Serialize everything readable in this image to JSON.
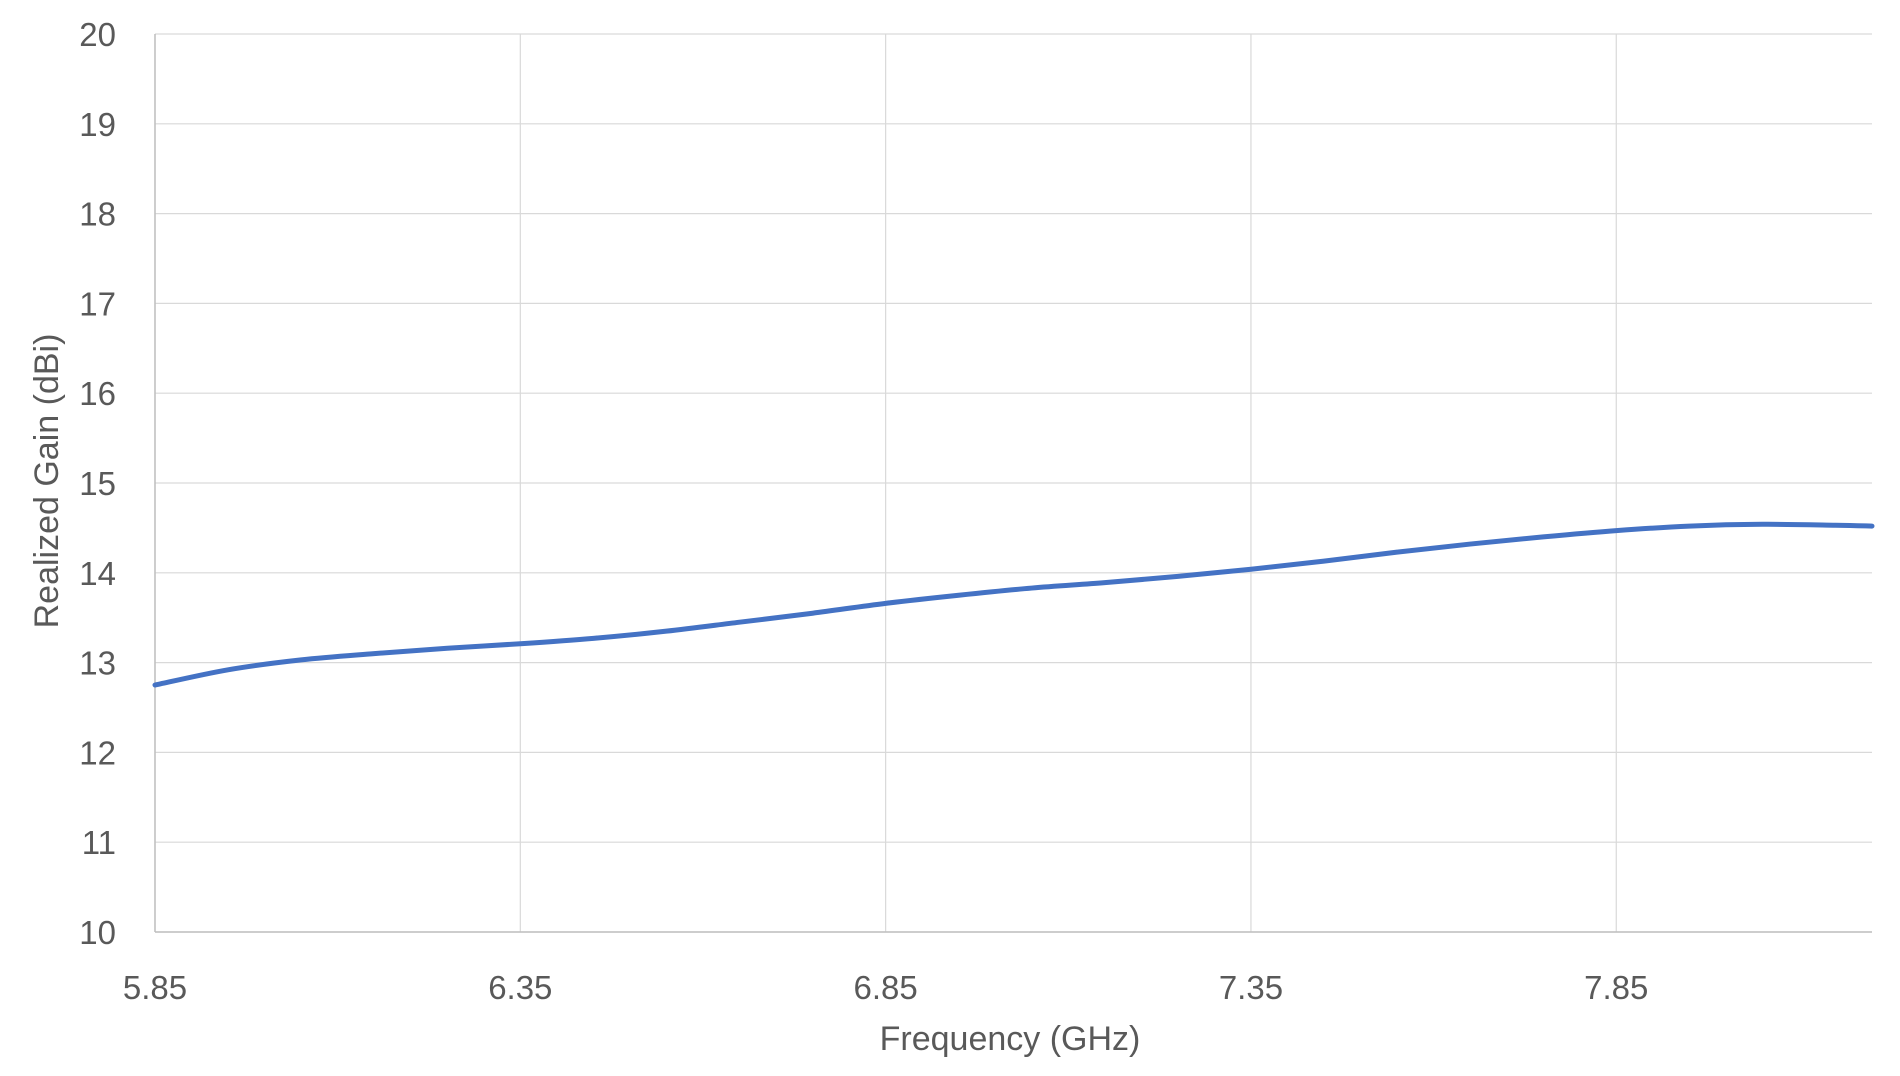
{
  "chart_data": {
    "type": "line",
    "title": "",
    "xlabel": "Frequency (GHz)",
    "ylabel": "Realized Gain (dBi)",
    "xlim": [
      5.85,
      8.2
    ],
    "ylim": [
      10,
      20
    ],
    "grid": true,
    "x_ticks": [
      "5.85",
      "6.35",
      "6.85",
      "7.35",
      "7.85"
    ],
    "y_ticks": [
      "10",
      "11",
      "12",
      "13",
      "14",
      "15",
      "16",
      "17",
      "18",
      "19",
      "20"
    ],
    "series": [
      {
        "color": "#4472c4",
        "x": [
          5.85,
          5.95,
          6.05,
          6.15,
          6.25,
          6.35,
          6.45,
          6.55,
          6.65,
          6.75,
          6.85,
          6.95,
          7.05,
          7.15,
          7.25,
          7.35,
          7.45,
          7.55,
          7.65,
          7.75,
          7.85,
          7.95,
          8.05,
          8.15,
          8.2
        ],
        "y": [
          12.75,
          12.92,
          13.03,
          13.1,
          13.16,
          13.21,
          13.27,
          13.35,
          13.45,
          13.55,
          13.66,
          13.75,
          13.83,
          13.89,
          13.96,
          14.04,
          14.13,
          14.23,
          14.32,
          14.4,
          14.47,
          14.52,
          14.54,
          14.53,
          14.52
        ]
      }
    ]
  }
}
